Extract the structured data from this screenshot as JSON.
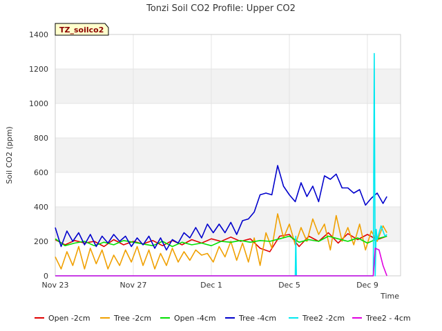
{
  "chart_data": {
    "type": "line",
    "title": "Tonzi Soil CO2 Profile: Upper CO2",
    "xlabel": "Time",
    "ylabel": "Soil CO2 (ppm)",
    "site_tag": "TZ_soilco2",
    "xlim": [
      0,
      17.7
    ],
    "ylim": [
      0,
      1400
    ],
    "yticks": [
      0,
      200,
      400,
      600,
      800,
      1000,
      1200,
      1400
    ],
    "xticks": [
      {
        "value": 0,
        "label": "Nov 23"
      },
      {
        "value": 4,
        "label": "Nov 27"
      },
      {
        "value": 8,
        "label": "Dec 1"
      },
      {
        "value": 12,
        "label": "Dec 5"
      },
      {
        "value": 16,
        "label": "Dec 9"
      }
    ],
    "shaded_bands": [
      [
        200,
        400
      ],
      [
        600,
        800
      ],
      [
        1000,
        1200
      ]
    ],
    "series": [
      {
        "name": "Open -2cm",
        "color": "#e00000",
        "x": [
          0,
          0.5,
          1,
          1.5,
          2,
          2.5,
          3,
          3.5,
          4,
          4.5,
          5,
          5.5,
          6,
          6.5,
          7,
          7.5,
          8,
          8.5,
          9,
          9.5,
          10,
          10.5,
          11,
          11.5,
          12,
          12.5,
          13,
          13.5,
          14,
          14.5,
          15,
          15.5,
          16,
          16.5,
          17
        ],
        "y": [
          210,
          180,
          205,
          190,
          200,
          170,
          210,
          180,
          200,
          185,
          205,
          175,
          205,
          180,
          210,
          190,
          215,
          200,
          225,
          200,
          215,
          160,
          140,
          230,
          240,
          170,
          230,
          200,
          250,
          190,
          245,
          210,
          240,
          210,
          230
        ]
      },
      {
        "name": "Tree -2cm",
        "color": "#f0a000",
        "x": [
          0,
          0.3,
          0.6,
          0.9,
          1.2,
          1.5,
          1.8,
          2.1,
          2.4,
          2.7,
          3,
          3.3,
          3.6,
          3.9,
          4.2,
          4.5,
          4.8,
          5.1,
          5.4,
          5.7,
          6,
          6.3,
          6.6,
          6.9,
          7.2,
          7.5,
          7.8,
          8.1,
          8.4,
          8.7,
          9,
          9.3,
          9.6,
          9.9,
          10.2,
          10.5,
          10.8,
          11.1,
          11.4,
          11.7,
          12,
          12.3,
          12.6,
          12.9,
          13.2,
          13.5,
          13.8,
          14.1,
          14.4,
          14.7,
          15,
          15.3,
          15.6,
          15.9,
          16.2,
          16.5,
          16.8,
          17
        ],
        "y": [
          110,
          40,
          140,
          60,
          170,
          40,
          160,
          70,
          150,
          40,
          120,
          60,
          150,
          80,
          170,
          60,
          150,
          40,
          130,
          60,
          160,
          80,
          140,
          90,
          150,
          120,
          130,
          80,
          170,
          110,
          200,
          90,
          190,
          80,
          220,
          60,
          250,
          160,
          360,
          220,
          300,
          180,
          280,
          200,
          330,
          240,
          300,
          150,
          350,
          200,
          280,
          180,
          300,
          150,
          260,
          200,
          290,
          250
        ]
      },
      {
        "name": "Open -4cm",
        "color": "#00e000",
        "x": [
          0,
          0.5,
          1,
          1.5,
          2,
          2.5,
          3,
          3.5,
          4,
          4.5,
          5,
          5.5,
          6,
          6.5,
          7,
          7.5,
          8,
          8.5,
          9,
          9.5,
          10,
          10.5,
          11,
          11.5,
          12,
          12.5,
          13,
          13.5,
          14,
          14.5,
          15,
          15.5,
          16,
          16.5,
          17
        ],
        "y": [
          215,
          175,
          190,
          200,
          175,
          195,
          180,
          205,
          195,
          185,
          175,
          200,
          170,
          195,
          180,
          190,
          175,
          200,
          195,
          205,
          195,
          205,
          200,
          215,
          230,
          195,
          210,
          200,
          230,
          215,
          200,
          220,
          190,
          215,
          230
        ]
      },
      {
        "name": "Tree -4cm",
        "color": "#0000cc",
        "x": [
          0,
          0.3,
          0.6,
          0.9,
          1.2,
          1.5,
          1.8,
          2.1,
          2.4,
          2.7,
          3,
          3.3,
          3.6,
          3.9,
          4.2,
          4.5,
          4.8,
          5.1,
          5.4,
          5.7,
          6,
          6.3,
          6.6,
          6.9,
          7.2,
          7.5,
          7.8,
          8.1,
          8.4,
          8.7,
          9,
          9.3,
          9.6,
          9.9,
          10.2,
          10.5,
          10.8,
          11.1,
          11.4,
          11.7,
          12,
          12.3,
          12.6,
          12.9,
          13.2,
          13.5,
          13.8,
          14.1,
          14.4,
          14.7,
          15,
          15.3,
          15.6,
          15.9,
          16.2,
          16.5,
          16.8,
          17
        ],
        "y": [
          280,
          170,
          260,
          200,
          250,
          180,
          240,
          170,
          230,
          190,
          240,
          200,
          230,
          170,
          220,
          180,
          230,
          160,
          220,
          150,
          210,
          190,
          250,
          220,
          280,
          220,
          300,
          250,
          300,
          250,
          310,
          240,
          320,
          330,
          370,
          470,
          480,
          470,
          640,
          520,
          470,
          430,
          540,
          460,
          520,
          430,
          580,
          560,
          590,
          510,
          510,
          480,
          500,
          410,
          450,
          480,
          420,
          460
        ]
      },
      {
        "name": "Tree2 -2cm",
        "color": "#00e8f0",
        "x": [
          0,
          12.3,
          12.33,
          12.36,
          12.4,
          16.3,
          16.35,
          16.4,
          16.45,
          16.5,
          16.7,
          16.9,
          17
        ],
        "y": [
          0,
          0,
          230,
          0,
          0,
          0,
          1290,
          0,
          270,
          210,
          290,
          230,
          240
        ]
      },
      {
        "name": "Tree2 - 4cm",
        "color": "#e000e0",
        "x": [
          0,
          16.3,
          16.4,
          16.6,
          16.8,
          17
        ],
        "y": [
          0,
          0,
          160,
          150,
          60,
          0
        ]
      }
    ]
  }
}
